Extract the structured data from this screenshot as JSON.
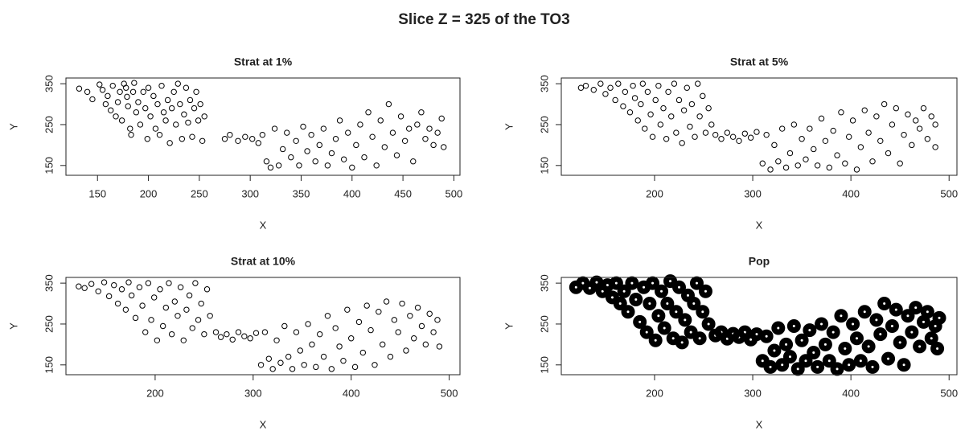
{
  "title": "Slice Z = 325 of the TO3",
  "chart_data": [
    {
      "type": "scatter",
      "title": "Strat at 1%",
      "xlabel": "X",
      "ylabel": "Y",
      "color": "#000000",
      "xlim": [
        119,
        506
      ],
      "ylim": [
        126,
        364
      ],
      "xticks": [
        150,
        200,
        250,
        300,
        350,
        400,
        450,
        500
      ],
      "yticks": [
        150,
        250,
        350
      ],
      "x": [
        132,
        140,
        145,
        152,
        155,
        158,
        160,
        163,
        165,
        168,
        170,
        172,
        174,
        176,
        178,
        179,
        180,
        182,
        183,
        185,
        186,
        188,
        190,
        192,
        195,
        197,
        199,
        200,
        202,
        205,
        207,
        209,
        211,
        213,
        215,
        217,
        219,
        221,
        223,
        225,
        227,
        229,
        231,
        233,
        235,
        237,
        239,
        241,
        243,
        245,
        247,
        249,
        251,
        253,
        255,
        275,
        280,
        288,
        295,
        302,
        308,
        312,
        316,
        320,
        324,
        328,
        332,
        336,
        340,
        345,
        348,
        352,
        356,
        360,
        364,
        368,
        372,
        376,
        380,
        384,
        388,
        392,
        396,
        400,
        404,
        408,
        412,
        416,
        420,
        424,
        428,
        432,
        436,
        440,
        444,
        448,
        452,
        456,
        460,
        464,
        468,
        472,
        476,
        480,
        484,
        490,
        488
      ],
      "values": [
        338,
        330,
        312,
        348,
        335,
        300,
        320,
        285,
        345,
        270,
        305,
        330,
        260,
        350,
        340,
        318,
        295,
        240,
        225,
        330,
        352,
        280,
        305,
        250,
        330,
        290,
        215,
        340,
        270,
        320,
        240,
        300,
        225,
        345,
        280,
        260,
        310,
        205,
        290,
        330,
        250,
        350,
        300,
        215,
        275,
        340,
        255,
        310,
        220,
        290,
        330,
        260,
        300,
        210,
        270,
        215,
        225,
        210,
        220,
        215,
        205,
        225,
        160,
        145,
        240,
        150,
        190,
        230,
        170,
        210,
        150,
        245,
        185,
        225,
        160,
        200,
        240,
        150,
        180,
        215,
        260,
        165,
        230,
        145,
        200,
        250,
        170,
        280,
        220,
        150,
        260,
        195,
        300,
        230,
        175,
        270,
        210,
        240,
        160,
        250,
        280,
        215,
        240,
        200,
        230,
        195,
        265
      ]
    },
    {
      "type": "scatter",
      "title": "Strat at 5%",
      "xlabel": "X",
      "ylabel": "Y",
      "color": "#000000",
      "xlim": [
        105,
        508
      ],
      "ylim": [
        126,
        364
      ],
      "xticks": [
        200,
        300,
        400,
        500
      ],
      "yticks": [
        150,
        250,
        350
      ],
      "x": [
        125,
        130,
        138,
        145,
        150,
        155,
        160,
        163,
        168,
        170,
        175,
        178,
        180,
        183,
        186,
        188,
        190,
        193,
        196,
        198,
        201,
        204,
        206,
        209,
        212,
        214,
        217,
        220,
        222,
        225,
        228,
        230,
        233,
        236,
        238,
        241,
        244,
        246,
        249,
        252,
        255,
        258,
        262,
        268,
        274,
        280,
        286,
        292,
        298,
        304,
        310,
        314,
        318,
        322,
        326,
        330,
        334,
        338,
        342,
        346,
        350,
        354,
        358,
        362,
        366,
        370,
        374,
        378,
        382,
        386,
        390,
        394,
        398,
        402,
        406,
        410,
        414,
        418,
        422,
        426,
        430,
        434,
        438,
        442,
        446,
        450,
        454,
        458,
        462,
        466,
        470,
        474,
        478,
        482,
        486,
        486
      ],
      "values": [
        340,
        345,
        335,
        350,
        325,
        340,
        310,
        350,
        295,
        330,
        280,
        345,
        315,
        260,
        300,
        350,
        240,
        330,
        275,
        220,
        310,
        345,
        250,
        290,
        215,
        330,
        270,
        350,
        230,
        310,
        205,
        285,
        340,
        245,
        300,
        220,
        350,
        270,
        320,
        230,
        290,
        250,
        225,
        215,
        230,
        220,
        210,
        228,
        218,
        232,
        155,
        225,
        140,
        200,
        160,
        240,
        145,
        180,
        250,
        150,
        215,
        165,
        240,
        190,
        150,
        265,
        210,
        145,
        235,
        175,
        280,
        155,
        220,
        260,
        140,
        195,
        285,
        230,
        160,
        270,
        210,
        300,
        180,
        250,
        290,
        155,
        225,
        275,
        200,
        260,
        240,
        290,
        215,
        270,
        250,
        195
      ]
    },
    {
      "type": "scatter",
      "title": "Strat at 10%",
      "xlabel": "X",
      "ylabel": "Y",
      "color": "#000000",
      "xlim": [
        109,
        511
      ],
      "ylim": [
        126,
        364
      ],
      "xticks": [
        200,
        300,
        400,
        500
      ],
      "yticks": [
        150,
        250,
        350
      ],
      "x": [
        122,
        128,
        135,
        142,
        148,
        153,
        158,
        162,
        166,
        170,
        173,
        176,
        180,
        184,
        187,
        190,
        193,
        196,
        199,
        202,
        205,
        208,
        211,
        214,
        217,
        220,
        223,
        226,
        229,
        232,
        235,
        238,
        241,
        244,
        247,
        250,
        253,
        256,
        262,
        267,
        273,
        279,
        285,
        291,
        297,
        303,
        308,
        312,
        316,
        320,
        324,
        328,
        332,
        336,
        340,
        344,
        348,
        352,
        356,
        360,
        364,
        368,
        372,
        376,
        380,
        384,
        388,
        392,
        396,
        400,
        404,
        408,
        412,
        416,
        420,
        424,
        428,
        432,
        436,
        440,
        444,
        448,
        452,
        456,
        460,
        464,
        468,
        472,
        476,
        480,
        484,
        488,
        490
      ],
      "values": [
        342,
        338,
        348,
        330,
        352,
        318,
        345,
        300,
        335,
        285,
        352,
        320,
        265,
        340,
        295,
        230,
        350,
        260,
        315,
        210,
        335,
        245,
        290,
        350,
        225,
        305,
        270,
        340,
        210,
        285,
        320,
        240,
        350,
        260,
        300,
        225,
        335,
        270,
        230,
        218,
        225,
        212,
        230,
        220,
        215,
        228,
        150,
        230,
        165,
        140,
        210,
        155,
        245,
        170,
        140,
        230,
        185,
        150,
        250,
        200,
        145,
        225,
        170,
        270,
        140,
        240,
        195,
        160,
        285,
        215,
        145,
        255,
        180,
        295,
        235,
        150,
        280,
        200,
        305,
        170,
        260,
        230,
        300,
        185,
        270,
        215,
        290,
        245,
        200,
        275,
        230,
        260,
        195
      ]
    },
    {
      "type": "scatter",
      "title": "Pop",
      "xlabel": "X",
      "ylabel": "Y",
      "color": "#000000",
      "xlim": [
        105,
        508
      ],
      "ylim": [
        126,
        364
      ],
      "xticks": [
        200,
        300,
        400,
        500
      ],
      "yticks": [
        150,
        250,
        350
      ],
      "x": [
        120,
        127,
        134,
        141,
        147,
        152,
        157,
        161,
        165,
        169,
        173,
        177,
        181,
        185,
        189,
        192,
        195,
        198,
        201,
        204,
        207,
        210,
        213,
        216,
        219,
        222,
        225,
        228,
        231,
        234,
        237,
        240,
        243,
        246,
        249,
        252,
        255,
        262,
        268,
        274,
        280,
        286,
        292,
        298,
        304,
        310,
        314,
        318,
        322,
        326,
        330,
        334,
        338,
        342,
        346,
        350,
        354,
        358,
        362,
        366,
        370,
        374,
        378,
        382,
        386,
        390,
        394,
        398,
        402,
        406,
        410,
        414,
        418,
        422,
        426,
        430,
        434,
        438,
        442,
        446,
        450,
        454,
        458,
        462,
        466,
        470,
        474,
        478,
        482,
        486,
        490,
        488
      ],
      "values": [
        340,
        350,
        338,
        352,
        330,
        345,
        315,
        350,
        300,
        330,
        280,
        350,
        310,
        255,
        340,
        230,
        300,
        350,
        210,
        270,
        330,
        240,
        300,
        355,
        215,
        280,
        340,
        205,
        260,
        320,
        230,
        300,
        350,
        215,
        280,
        330,
        250,
        222,
        230,
        214,
        226,
        218,
        230,
        212,
        225,
        160,
        220,
        145,
        185,
        240,
        150,
        200,
        170,
        245,
        140,
        210,
        160,
        235,
        180,
        145,
        250,
        200,
        160,
        230,
        140,
        270,
        190,
        150,
        250,
        215,
        160,
        280,
        195,
        145,
        260,
        225,
        300,
        165,
        245,
        285,
        205,
        150,
        270,
        230,
        290,
        195,
        255,
        280,
        215,
        245,
        265,
        190
      ]
    }
  ]
}
